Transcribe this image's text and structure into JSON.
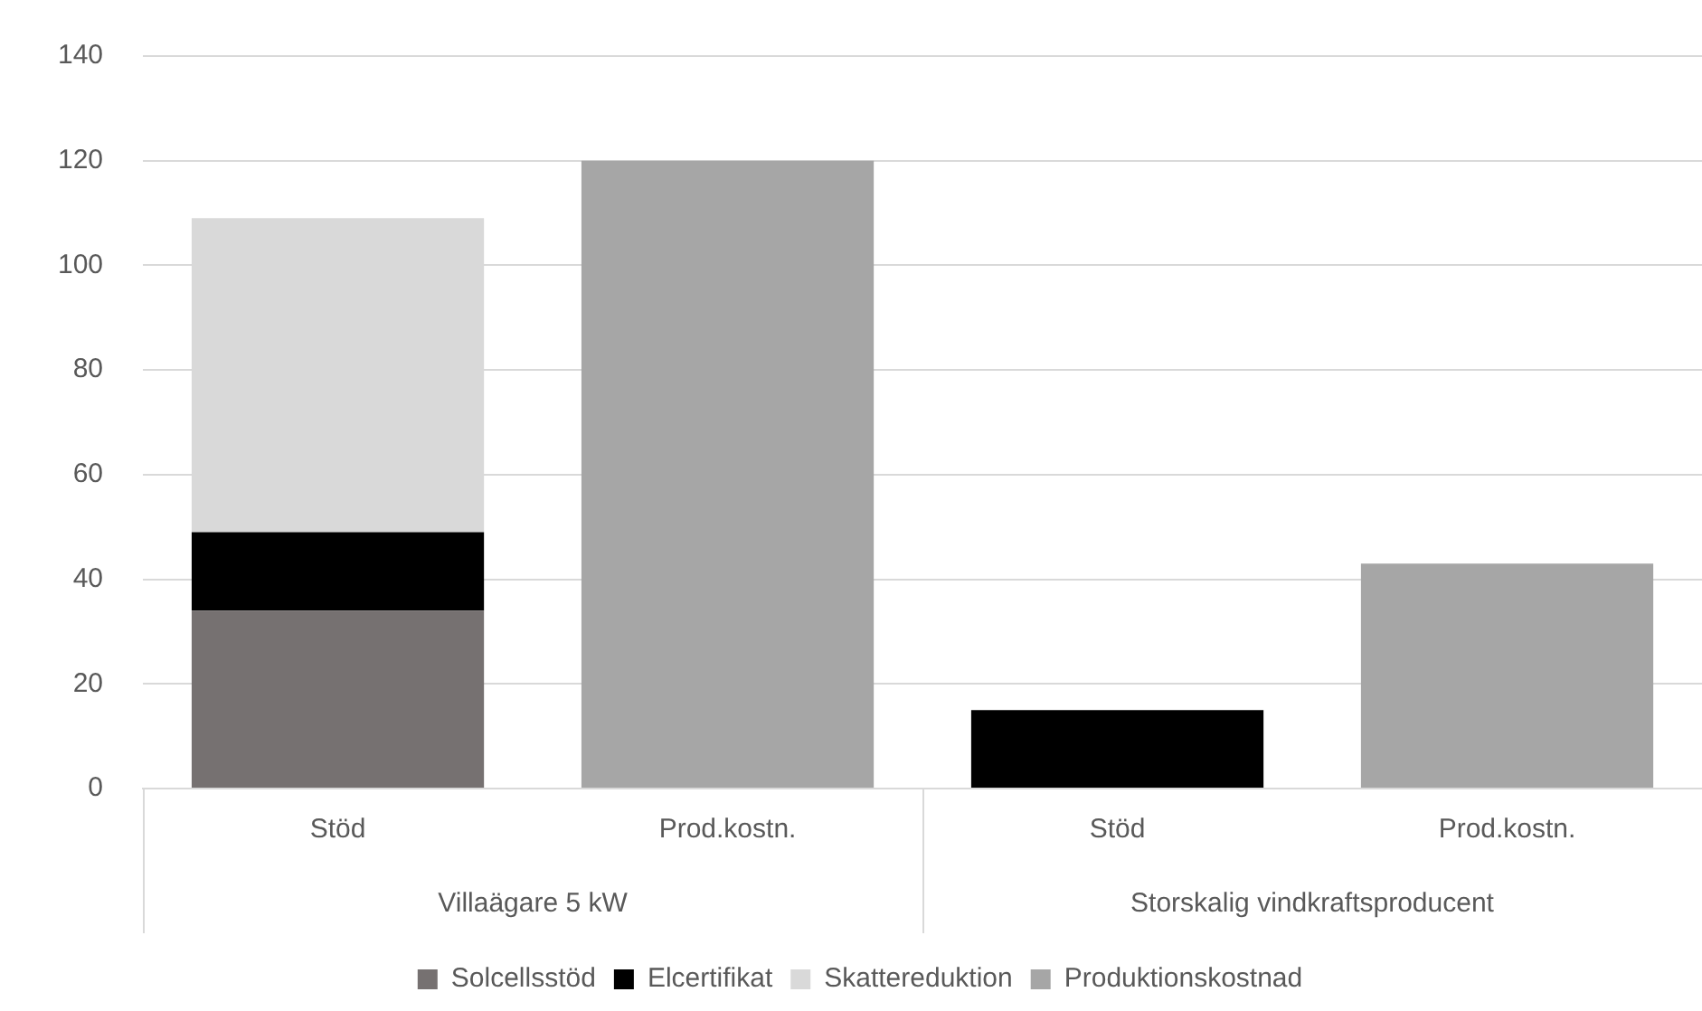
{
  "chart_data": {
    "type": "bar",
    "stacked": true,
    "categories": [
      "Stöd",
      "Prod.kostn.",
      "Stöd",
      "Prod.kostn."
    ],
    "series": [
      {
        "name": "Solcellsstöd",
        "color": "#767171",
        "values": [
          34,
          null,
          null,
          null
        ]
      },
      {
        "name": "Elcertifikat",
        "color": "#000000",
        "values": [
          15,
          null,
          15,
          null
        ]
      },
      {
        "name": "Skattereduktion",
        "color": "#d9d9d9",
        "values": [
          60,
          null,
          null,
          null
        ]
      },
      {
        "name": "Produktionskostnad",
        "color": "#a6a6a6",
        "values": [
          null,
          120,
          null,
          43
        ]
      }
    ],
    "annotations": [
      "Villaägare 5 kW",
      "Storskalig vindkraftsproducent"
    ],
    "ylim": [
      0,
      140
    ],
    "yticks": [
      0,
      20,
      40,
      60,
      80,
      100,
      120,
      140
    ],
    "grid": "y",
    "legend": "bottom"
  }
}
